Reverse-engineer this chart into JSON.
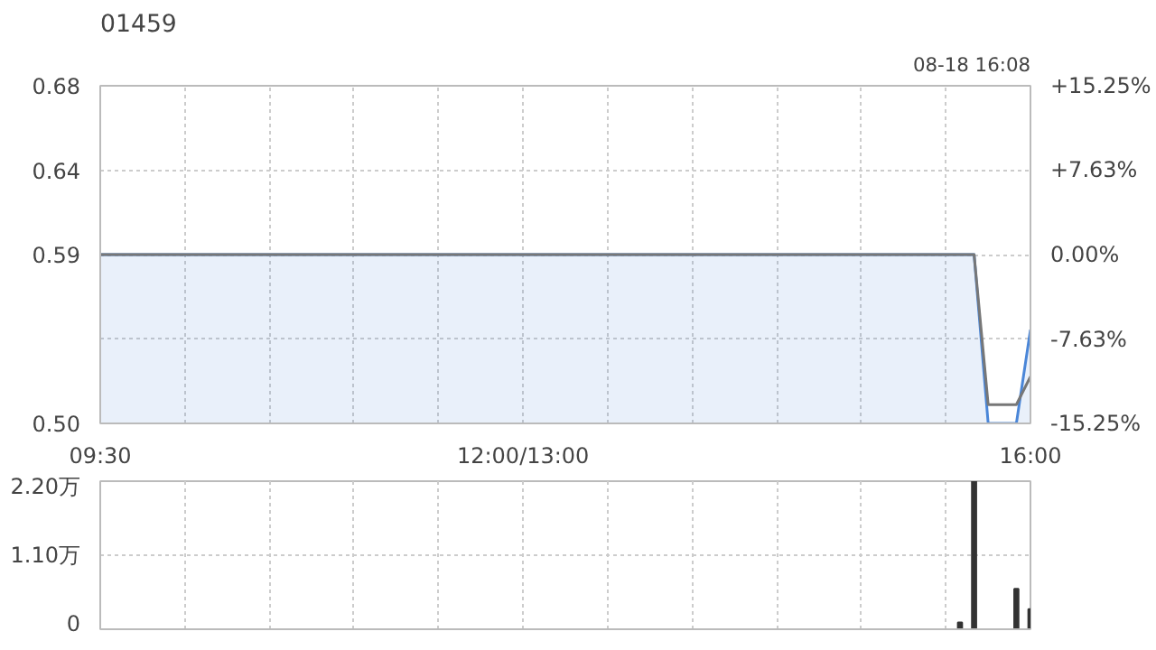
{
  "chart_data": [
    {
      "type": "area",
      "title": "01459",
      "annotations": [
        "08-18 16:08"
      ],
      "categories": [
        "09:30",
        null,
        null,
        null,
        null,
        null,
        null,
        null,
        null,
        null,
        null,
        null,
        null,
        null,
        null,
        null,
        null,
        null,
        null,
        null,
        null,
        null,
        null,
        null,
        null,
        null,
        null,
        null,
        null,
        null,
        "12:00/13:00",
        null,
        null,
        null,
        null,
        null,
        null,
        null,
        null,
        null,
        null,
        null,
        null,
        null,
        null,
        null,
        null,
        null,
        null,
        null,
        null,
        null,
        null,
        null,
        null,
        null,
        null,
        null,
        null,
        null,
        null,
        null,
        null,
        null,
        null,
        null,
        "16:00"
      ],
      "series": [
        {
          "color": "#4a86d8",
          "values": [
            0.59,
            0.59,
            0.59,
            0.59,
            0.59,
            0.59,
            0.59,
            0.59,
            0.59,
            0.59,
            0.59,
            0.59,
            0.59,
            0.59,
            0.59,
            0.59,
            0.59,
            0.59,
            0.59,
            0.59,
            0.59,
            0.59,
            0.59,
            0.59,
            0.59,
            0.59,
            0.59,
            0.59,
            0.59,
            0.59,
            0.59,
            0.59,
            0.59,
            0.59,
            0.59,
            0.59,
            0.59,
            0.59,
            0.59,
            0.59,
            0.59,
            0.59,
            0.59,
            0.59,
            0.59,
            0.59,
            0.59,
            0.59,
            0.59,
            0.59,
            0.59,
            0.59,
            0.59,
            0.59,
            0.59,
            0.59,
            0.59,
            0.59,
            0.59,
            0.59,
            0.59,
            0.59,
            0.59,
            0.5,
            0.5,
            0.5,
            0.55
          ]
        },
        {
          "type": "line",
          "color": "#777777",
          "values": [
            0.59,
            0.59,
            0.59,
            0.59,
            0.59,
            0.59,
            0.59,
            0.59,
            0.59,
            0.59,
            0.59,
            0.59,
            0.59,
            0.59,
            0.59,
            0.59,
            0.59,
            0.59,
            0.59,
            0.59,
            0.59,
            0.59,
            0.59,
            0.59,
            0.59,
            0.59,
            0.59,
            0.59,
            0.59,
            0.59,
            0.59,
            0.59,
            0.59,
            0.59,
            0.59,
            0.59,
            0.59,
            0.59,
            0.59,
            0.59,
            0.59,
            0.59,
            0.59,
            0.59,
            0.59,
            0.59,
            0.59,
            0.59,
            0.59,
            0.59,
            0.59,
            0.59,
            0.59,
            0.59,
            0.59,
            0.59,
            0.59,
            0.59,
            0.59,
            0.59,
            0.59,
            0.59,
            0.59,
            0.51,
            0.51,
            0.51,
            0.525
          ]
        }
      ],
      "ylim": [
        0.5,
        0.68
      ],
      "yticks": [
        {
          "value": 0.5,
          "label": "0.50"
        },
        {
          "value": 0.545,
          "label": null
        },
        {
          "value": 0.59,
          "label": "0.59"
        },
        {
          "value": 0.635,
          "label": "0.64"
        },
        {
          "value": 0.68,
          "label": "0.68"
        }
      ],
      "y2lim": [
        -15.25,
        15.25
      ],
      "y2ticks": [
        {
          "value": -15.25,
          "label": "-15.25%"
        },
        {
          "value": -7.63,
          "label": "-7.63%"
        },
        {
          "value": 0,
          "label": "0.00%"
        },
        {
          "value": 7.63,
          "label": "+7.63%"
        },
        {
          "value": 15.25,
          "label": "+15.25%"
        }
      ],
      "grid": true
    },
    {
      "type": "bar",
      "categories": [
        null,
        null,
        null,
        null,
        null,
        null,
        null,
        null,
        null,
        null,
        null,
        null,
        null,
        null,
        null,
        null,
        null,
        null,
        null,
        null,
        null,
        null,
        null,
        null,
        null,
        null,
        null,
        null,
        null,
        null,
        null,
        null,
        null,
        null,
        null,
        null,
        null,
        null,
        null,
        null,
        null,
        null,
        null,
        null,
        null,
        null,
        null,
        null,
        null,
        null,
        null,
        null,
        null,
        null,
        null,
        null,
        null,
        null,
        null,
        null,
        null,
        null,
        null,
        null,
        null,
        null,
        null
      ],
      "values": [
        0,
        0,
        0,
        0,
        0,
        0,
        0,
        0,
        0,
        0,
        0,
        0,
        0,
        0,
        0,
        0,
        0,
        0,
        0,
        0,
        0,
        0,
        0,
        0,
        0,
        0,
        0,
        0,
        0,
        0,
        0,
        0,
        0,
        0,
        0,
        0,
        0,
        0,
        0,
        0,
        0,
        0,
        0,
        0,
        0,
        0,
        0,
        0,
        0,
        0,
        0,
        0,
        0,
        0,
        0,
        0,
        0,
        0,
        0,
        0,
        0,
        0.1,
        2.2,
        0,
        0,
        0.6,
        0.3
      ],
      "color": "#333333",
      "ylim": [
        0,
        2.2
      ],
      "yticks": [
        0,
        {
          "value": 1.1,
          "label": "1.10万"
        },
        {
          "value": 2.2,
          "label": "2.20万"
        }
      ],
      "grid": true
    }
  ]
}
